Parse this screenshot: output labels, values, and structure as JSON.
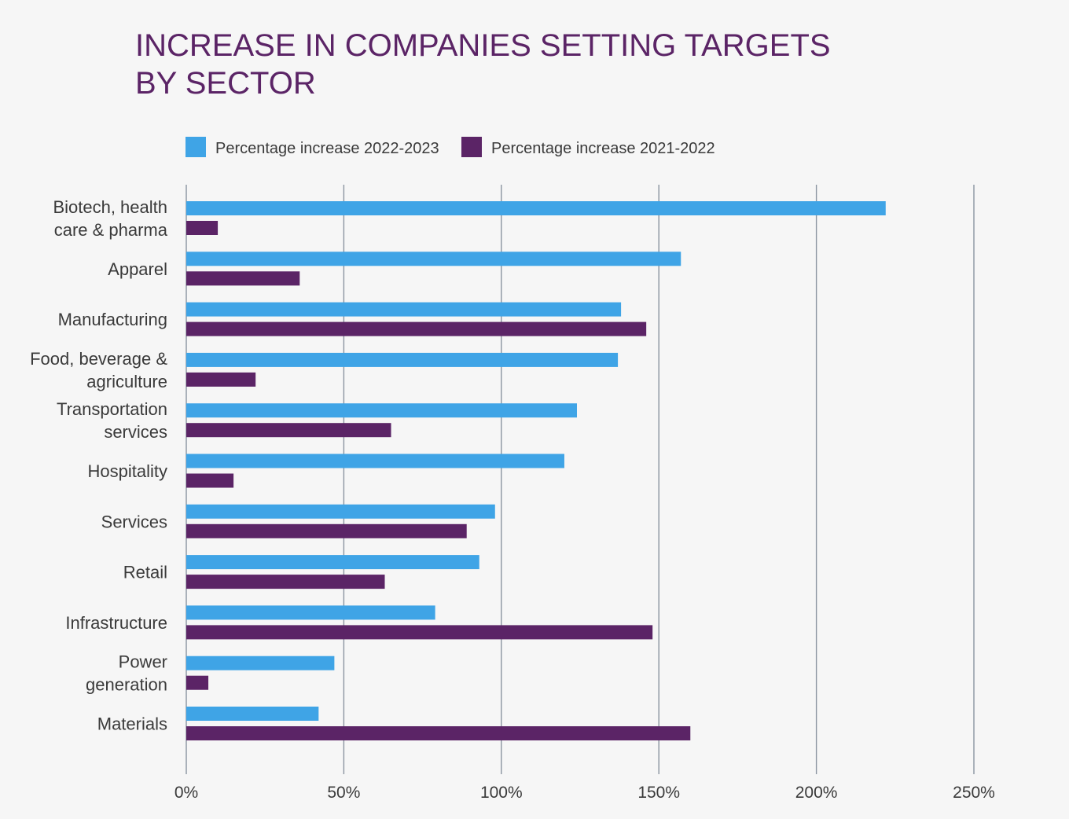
{
  "chart_data": {
    "type": "bar",
    "orientation": "horizontal",
    "title_lines": [
      "INCREASE IN COMPANIES SETTING TARGETS",
      "BY SECTOR"
    ],
    "categories": [
      [
        "Biotech, health",
        "care & pharma"
      ],
      [
        "Apparel"
      ],
      [
        "Manufacturing"
      ],
      [
        "Food, beverage &",
        "agriculture"
      ],
      [
        "Transportation",
        "services"
      ],
      [
        "Hospitality"
      ],
      [
        "Services"
      ],
      [
        "Retail"
      ],
      [
        "Infrastructure"
      ],
      [
        "Power",
        "generation"
      ],
      [
        "Materials"
      ]
    ],
    "series": [
      {
        "name": "Percentage increase 2022-2023",
        "color": "#3fa4e6",
        "values": [
          222,
          157,
          138,
          137,
          124,
          120,
          98,
          93,
          79,
          47,
          42
        ]
      },
      {
        "name": "Percentage increase 2021-2022",
        "color": "#5b2466",
        "values": [
          10,
          36,
          146,
          22,
          65,
          15,
          89,
          63,
          148,
          7,
          160
        ]
      }
    ],
    "x_ticks": [
      "0%",
      "50%",
      "100%",
      "150%",
      "200%",
      "250%"
    ],
    "x_tick_values": [
      0,
      50,
      100,
      150,
      200,
      250
    ],
    "xlim": [
      0,
      250
    ],
    "grid": true,
    "legend_position": "top",
    "title_color": "#5b2466"
  }
}
